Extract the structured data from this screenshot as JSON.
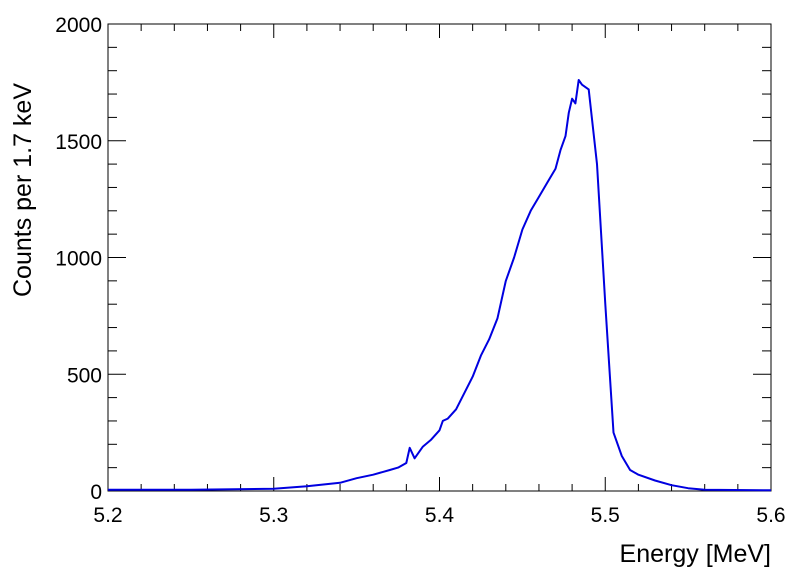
{
  "chart_data": {
    "type": "line",
    "title": "",
    "xlabel": "Energy [MeV]",
    "ylabel": "Counts per 1.7 keV",
    "xlim": [
      5.2,
      5.6
    ],
    "ylim": [
      0,
      2000
    ],
    "x_ticks": [
      "5.2",
      "5.3",
      "5.4",
      "5.5",
      "5.6"
    ],
    "y_ticks": [
      "0",
      "500",
      "1000",
      "1500",
      "2000"
    ],
    "grid": false,
    "legend": "none",
    "series": [
      {
        "color": "#0000e0",
        "x": [
          5.2,
          5.25,
          5.3,
          5.32,
          5.34,
          5.35,
          5.36,
          5.37,
          5.375,
          5.38,
          5.382,
          5.385,
          5.39,
          5.395,
          5.4,
          5.402,
          5.405,
          5.41,
          5.415,
          5.42,
          5.425,
          5.43,
          5.435,
          5.44,
          5.445,
          5.45,
          5.455,
          5.46,
          5.465,
          5.47,
          5.473,
          5.476,
          5.478,
          5.48,
          5.482,
          5.484,
          5.486,
          5.49,
          5.495,
          5.5,
          5.505,
          5.51,
          5.515,
          5.52,
          5.53,
          5.54,
          5.55,
          5.56,
          5.6
        ],
        "y": [
          5,
          5,
          10,
          20,
          35,
          55,
          70,
          90,
          100,
          120,
          185,
          140,
          190,
          220,
          260,
          300,
          310,
          350,
          420,
          490,
          580,
          650,
          740,
          900,
          1000,
          1120,
          1200,
          1260,
          1320,
          1380,
          1460,
          1520,
          1620,
          1680,
          1660,
          1760,
          1740,
          1720,
          1400,
          800,
          250,
          150,
          90,
          70,
          45,
          25,
          12,
          5,
          3
        ]
      }
    ]
  }
}
